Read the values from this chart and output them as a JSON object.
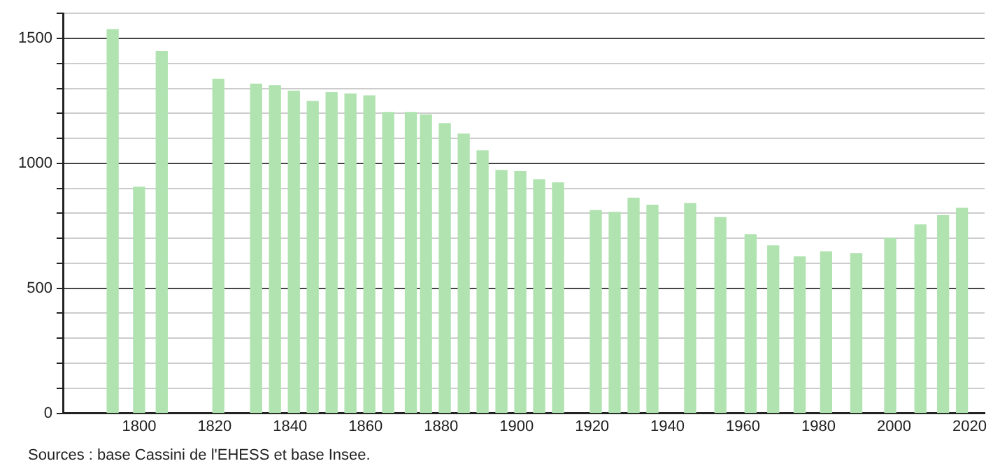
{
  "chart_data": {
    "type": "bar",
    "x": [
      1793,
      1800,
      1806,
      1821,
      1831,
      1836,
      1841,
      1846,
      1851,
      1856,
      1861,
      1866,
      1872,
      1876,
      1881,
      1886,
      1891,
      1896,
      1901,
      1906,
      1911,
      1921,
      1926,
      1931,
      1936,
      1946,
      1954,
      1962,
      1968,
      1975,
      1982,
      1990,
      1999,
      2007,
      2013,
      2018
    ],
    "values": [
      1535,
      905,
      1448,
      1337,
      1317,
      1311,
      1289,
      1248,
      1283,
      1278,
      1270,
      1204,
      1204,
      1194,
      1159,
      1117,
      1050,
      972,
      967,
      935,
      922,
      811,
      804,
      861,
      833,
      839,
      783,
      715,
      670,
      626,
      646,
      639,
      700,
      754,
      791,
      820
    ],
    "color": "#b0e3b0",
    "xlim": [
      1780,
      2024
    ],
    "xticks": [
      1800,
      1820,
      1840,
      1860,
      1880,
      1900,
      1920,
      1940,
      1960,
      1980,
      2000,
      2020
    ],
    "ylim": [
      0,
      1600
    ],
    "yticks": [
      0,
      {
        "value": 100,
        "label": null
      },
      {
        "value": 200,
        "label": null
      },
      {
        "value": 300,
        "label": null
      },
      {
        "value": 400,
        "label": null
      },
      500,
      {
        "value": 600,
        "label": null
      },
      {
        "value": 700,
        "label": null
      },
      {
        "value": 800,
        "label": null
      },
      {
        "value": 900,
        "label": null
      },
      1000,
      {
        "value": 1100,
        "label": null
      },
      {
        "value": 1200,
        "label": null
      },
      {
        "value": 1300,
        "label": null
      },
      {
        "value": 1400,
        "label": null
      },
      1500,
      {
        "value": 1600,
        "label": null
      }
    ],
    "grid": "y",
    "annotations": [
      "Sources : base Cassini de l'EHESS et base Insee."
    ]
  }
}
